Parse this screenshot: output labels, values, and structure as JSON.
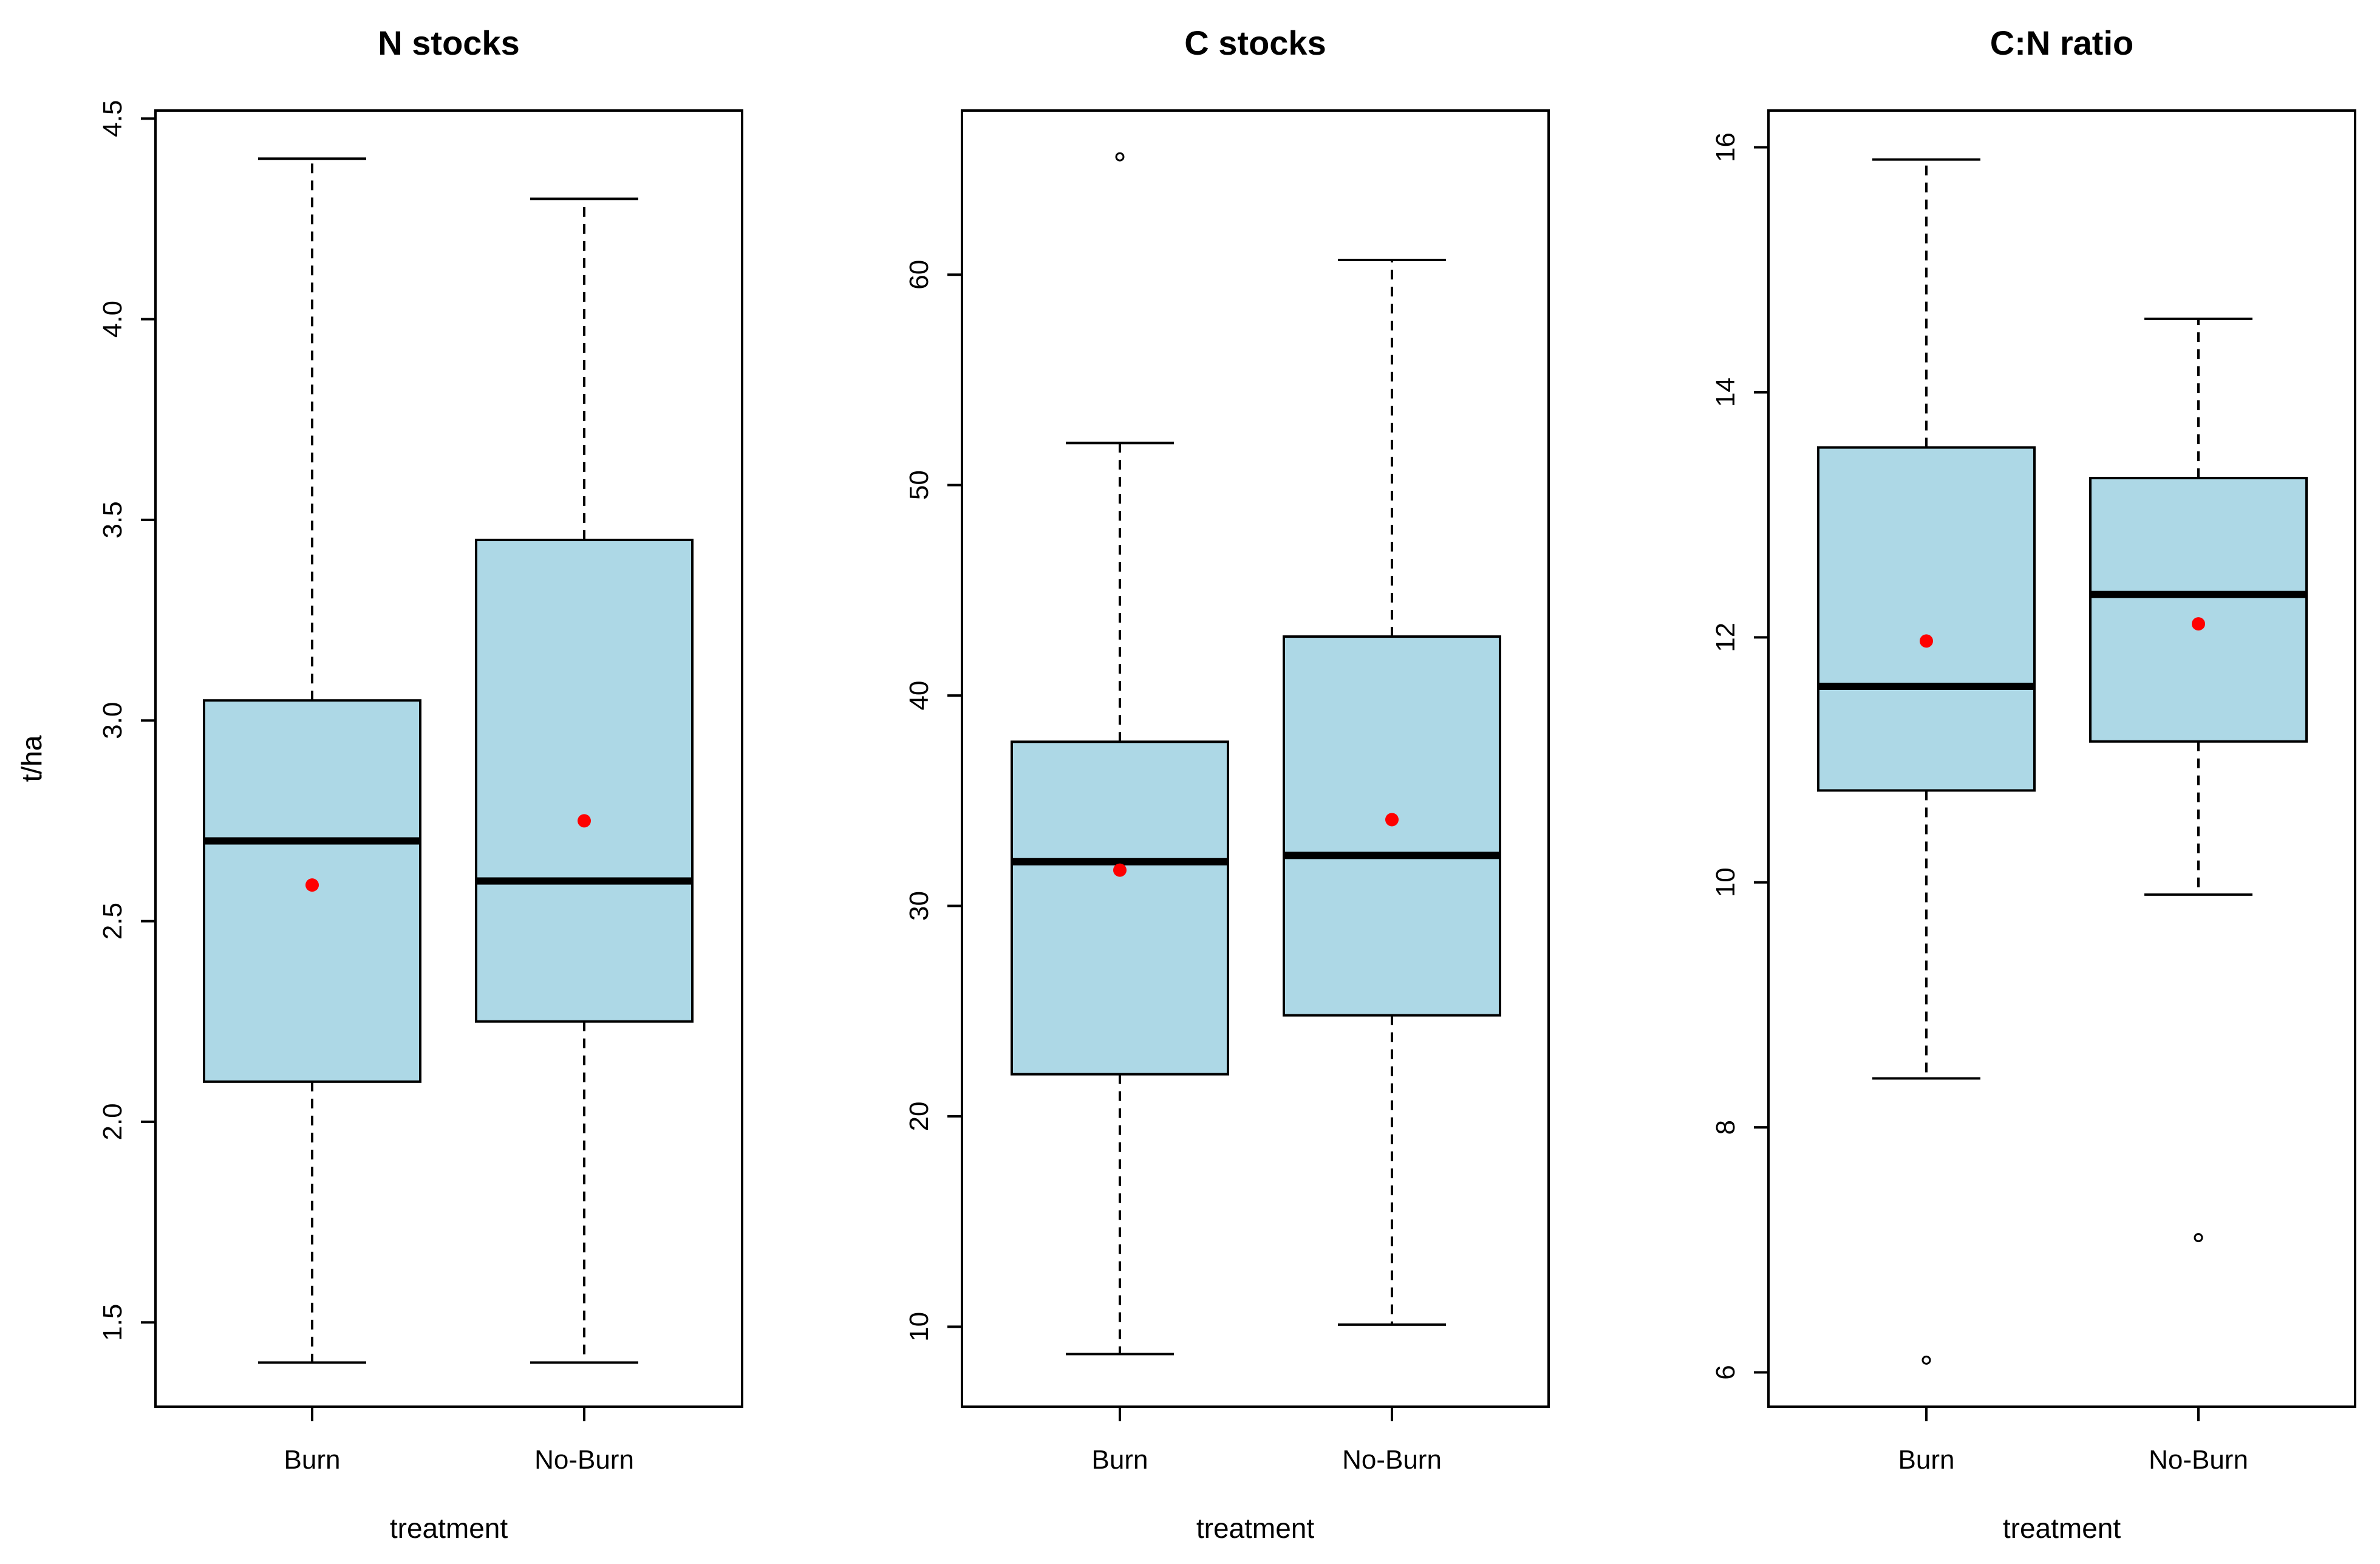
{
  "colors": {
    "box_fill": "#add8e6",
    "mean_point": "#ff0000",
    "ink": "#000000"
  },
  "chart_data": [
    {
      "type": "box",
      "title": "N stocks",
      "xlabel": "treatment",
      "ylabel": "t/ha",
      "categories": [
        "Burn",
        "No-Burn"
      ],
      "ylim": [
        1.29,
        4.52
      ],
      "yticks": [
        1.5,
        2.0,
        2.5,
        3.0,
        3.5,
        4.0,
        4.5
      ],
      "ytick_labels": [
        "1.5",
        "2.0",
        "2.5",
        "3.0",
        "3.5",
        "4.0",
        "4.5"
      ],
      "boxes": [
        {
          "name": "Burn",
          "min": 1.4,
          "q1": 2.1,
          "median": 2.7,
          "q3": 3.05,
          "max": 4.4,
          "mean": 2.59,
          "outliers": []
        },
        {
          "name": "No-Burn",
          "min": 1.4,
          "q1": 2.25,
          "median": 2.6,
          "q3": 3.45,
          "max": 4.3,
          "mean": 2.75,
          "outliers": []
        }
      ]
    },
    {
      "type": "box",
      "title": "C stocks",
      "xlabel": "treatment",
      "ylabel": "t/ha",
      "categories": [
        "Burn",
        "No-Burn"
      ],
      "ylim": [
        6.2,
        67.8
      ],
      "yticks": [
        10,
        20,
        30,
        40,
        50,
        60
      ],
      "ytick_labels": [
        "10",
        "20",
        "30",
        "40",
        "50",
        "60"
      ],
      "boxes": [
        {
          "name": "Burn",
          "min": 8.7,
          "q1": 22.0,
          "median": 32.1,
          "q3": 37.8,
          "max": 52.0,
          "mean": 31.7,
          "outliers": [
            65.6
          ]
        },
        {
          "name": "No-Burn",
          "min": 10.1,
          "q1": 24.8,
          "median": 32.4,
          "q3": 42.8,
          "max": 60.7,
          "mean": 34.1,
          "outliers": []
        }
      ]
    },
    {
      "type": "box",
      "title": "C:N ratio",
      "xlabel": "treatment",
      "ylabel": "",
      "categories": [
        "Burn",
        "No-Burn"
      ],
      "ylim": [
        5.72,
        16.3
      ],
      "yticks": [
        6,
        8,
        10,
        12,
        14,
        16
      ],
      "ytick_labels": [
        "6",
        "8",
        "10",
        "12",
        "14",
        "16"
      ],
      "boxes": [
        {
          "name": "Burn",
          "min": 8.4,
          "q1": 10.75,
          "median": 11.6,
          "q3": 13.55,
          "max": 15.9,
          "mean": 11.97,
          "outliers": [
            6.1
          ]
        },
        {
          "name": "No-Burn",
          "min": 9.9,
          "q1": 11.15,
          "median": 12.35,
          "q3": 13.3,
          "max": 14.6,
          "mean": 12.11,
          "outliers": [
            7.1
          ]
        }
      ]
    }
  ]
}
